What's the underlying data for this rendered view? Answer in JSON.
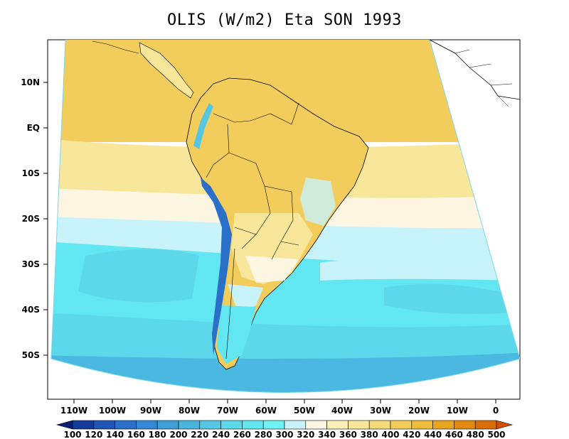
{
  "title": "OLIS (W/m2) Eta SON 1993",
  "lat_labels": [
    "10N",
    "EQ",
    "10S",
    "20S",
    "30S",
    "40S",
    "50S"
  ],
  "lon_labels": [
    "110W",
    "100W",
    "90W",
    "80W",
    "70W",
    "60W",
    "50W",
    "40W",
    "30W",
    "20W",
    "10W",
    "0"
  ],
  "colorbar": {
    "labels": [
      "100",
      "120",
      "140",
      "160",
      "180",
      "200",
      "220",
      "240",
      "260",
      "280",
      "300",
      "320",
      "340",
      "360",
      "380",
      "400",
      "420",
      "440",
      "460",
      "480",
      "500"
    ],
    "colors": [
      "#0c1f78",
      "#143a9a",
      "#1f55b4",
      "#2a6fc8",
      "#3488d4",
      "#3e9fd9",
      "#4ab4dc",
      "#56c7e2",
      "#5cd8ea",
      "#62e6f2",
      "#6ff2f6",
      "#c8f3fa",
      "#fdf6e2",
      "#fbf1b6",
      "#f8e79a",
      "#f5da79",
      "#f3cd5c",
      "#efbc3a",
      "#eaa51e",
      "#e18a0f",
      "#d86d05",
      "#cf5204"
    ]
  },
  "map_colors": {
    "gold": "#f3cd5c",
    "yellow": "#f8e79a",
    "cream": "#fdf6e2",
    "pale_blue": "#c8f3fa",
    "cyan": "#62e6f2",
    "mid_cyan": "#5cd8ea",
    "blue": "#3e9fd9",
    "dark_blue": "#143a9a"
  }
}
